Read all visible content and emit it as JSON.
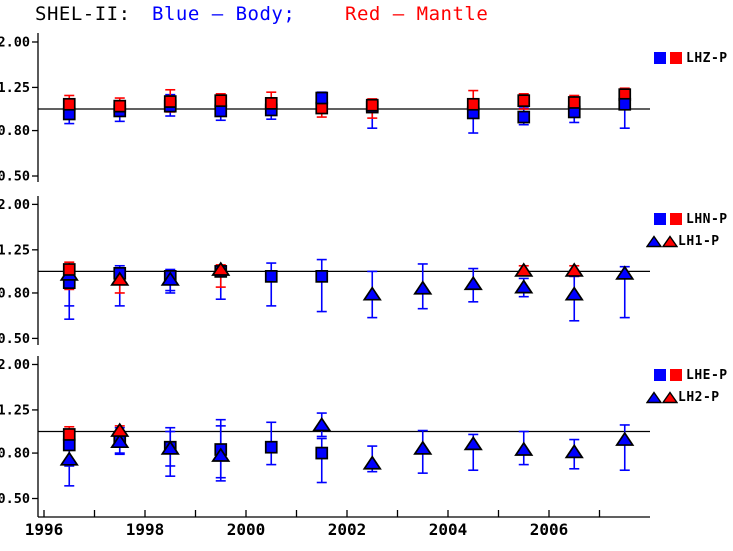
{
  "title": {
    "part1": "SHEL-II:",
    "part2": "Blue – Body;",
    "part3": "Red – Mantle"
  },
  "colors": {
    "body": "#0000ff",
    "mantle": "#ff0000",
    "axis": "#000000"
  },
  "chart_data": {
    "type": "scatter",
    "scale": "log",
    "title": "SHEL-II:  Blue – Body;  Red – Mantle",
    "x_axis": {
      "range": [
        1995.9,
        2008.0
      ],
      "tick_years": [
        1996,
        1997,
        1998,
        1999,
        2000,
        2001,
        2002,
        2003,
        2004,
        2005,
        2006,
        2007
      ],
      "label_years": [
        1996,
        1998,
        2000,
        2002,
        2004,
        2006
      ],
      "labels": [
        "1996",
        "1998",
        "2000",
        "2002",
        "2004",
        "2006"
      ]
    },
    "y_axis": {
      "tick_labels": [
        "2.00",
        "1.25",
        "0.80",
        "0.50"
      ],
      "tick_values": [
        2.0,
        1.25,
        0.8,
        0.5
      ],
      "reference_value": 1.0,
      "range": [
        0.45,
        2.1
      ]
    },
    "panels": [
      {
        "name": "LHZ",
        "legend": [
          {
            "label": "LHZ-P",
            "marker": "square"
          }
        ],
        "points": [
          {
            "x": 1996.5,
            "c": "blue",
            "m": "sq",
            "v": 0.95,
            "lo": 0.86,
            "hi": 1.02
          },
          {
            "x": 1996.5,
            "c": "red",
            "m": "sq",
            "v": 1.05,
            "lo": 0.95,
            "hi": 1.15
          },
          {
            "x": 1997.5,
            "c": "blue",
            "m": "sq",
            "v": 0.98,
            "lo": 0.88,
            "hi": 1.06
          },
          {
            "x": 1997.5,
            "c": "red",
            "m": "sq",
            "v": 1.03,
            "lo": 0.95,
            "hi": 1.12
          },
          {
            "x": 1998.5,
            "c": "blue",
            "m": "sq",
            "v": 1.03,
            "lo": 0.93,
            "hi": 1.16
          },
          {
            "x": 1998.5,
            "c": "red",
            "m": "sq",
            "v": 1.08,
            "lo": 0.97,
            "hi": 1.22
          },
          {
            "x": 1999.5,
            "c": "blue",
            "m": "sq",
            "v": 0.98,
            "lo": 0.89,
            "hi": 1.06
          },
          {
            "x": 1999.5,
            "c": "red",
            "m": "sq",
            "v": 1.09,
            "lo": 1.0,
            "hi": 1.17
          },
          {
            "x": 2000.5,
            "c": "blue",
            "m": "sq",
            "v": 0.99,
            "lo": 0.9,
            "hi": 1.08
          },
          {
            "x": 2000.5,
            "c": "red",
            "m": "sq",
            "v": 1.06,
            "lo": 0.95,
            "hi": 1.19
          },
          {
            "x": 2001.5,
            "c": "red",
            "m": "sq",
            "v": 1.01,
            "lo": 0.92,
            "hi": 1.08
          },
          {
            "x": 2001.5,
            "c": "blue",
            "m": "sq",
            "v": 1.12,
            "lo": 0.97,
            "hi": 1.19
          },
          {
            "x": 2002.5,
            "c": "blue",
            "m": "sq",
            "v": 1.02,
            "lo": 0.82,
            "hi": 1.1
          },
          {
            "x": 2002.5,
            "c": "red",
            "m": "sq",
            "v": 1.04,
            "lo": 0.91,
            "hi": 1.11
          },
          {
            "x": 2004.5,
            "c": "blue",
            "m": "sq",
            "v": 0.96,
            "lo": 0.78,
            "hi": 1.07
          },
          {
            "x": 2004.5,
            "c": "red",
            "m": "sq",
            "v": 1.05,
            "lo": 0.96,
            "hi": 1.21
          },
          {
            "x": 2005.5,
            "c": "blue",
            "m": "sq",
            "v": 0.92,
            "lo": 0.85,
            "hi": 1.01
          },
          {
            "x": 2005.5,
            "c": "red",
            "m": "sq",
            "v": 1.09,
            "lo": 1.0,
            "hi": 1.17
          },
          {
            "x": 2006.5,
            "c": "blue",
            "m": "sq",
            "v": 0.97,
            "lo": 0.87,
            "hi": 1.08
          },
          {
            "x": 2006.5,
            "c": "red",
            "m": "sq",
            "v": 1.07,
            "lo": 0.98,
            "hi": 1.15
          },
          {
            "x": 2007.5,
            "c": "red",
            "m": "sq",
            "v": 1.16,
            "lo": 1.04,
            "hi": 1.24
          },
          {
            "x": 2007.5,
            "c": "blue",
            "m": "sq",
            "v": 1.05,
            "lo": 0.82,
            "hi": 1.16
          }
        ]
      },
      {
        "name": "LHN",
        "legend": [
          {
            "label": "LHN-P",
            "marker": "square"
          },
          {
            "label": "LH1-P",
            "marker": "triangle"
          }
        ],
        "points": [
          {
            "x": 1996.5,
            "c": "blue",
            "m": "sq",
            "v": 0.89,
            "lo": 0.61,
            "hi": 1.04
          },
          {
            "x": 1996.5,
            "c": "blue",
            "m": "tri",
            "v": 0.97,
            "lo": 0.7,
            "hi": 1.05
          },
          {
            "x": 1996.5,
            "c": "red",
            "m": "sq",
            "v": 1.02,
            "lo": 0.83,
            "hi": 1.1
          },
          {
            "x": 1997.5,
            "c": "blue",
            "m": "sq",
            "v": 0.98,
            "lo": 0.7,
            "hi": 1.06
          },
          {
            "x": 1997.5,
            "c": "red",
            "m": "tri",
            "v": 0.92,
            "lo": 0.8,
            "hi": 1.03
          },
          {
            "x": 1998.5,
            "c": "blue",
            "m": "sq",
            "v": 0.95,
            "lo": 0.8,
            "hi": 1.02
          },
          {
            "x": 1998.5,
            "c": "blue",
            "m": "tri",
            "v": 0.92,
            "lo": 0.82,
            "hi": 1.0
          },
          {
            "x": 1999.5,
            "c": "blue",
            "m": "sq",
            "v": 1.0,
            "lo": 0.75,
            "hi": 1.06
          },
          {
            "x": 1999.5,
            "c": "red",
            "m": "tri",
            "v": 1.02,
            "lo": 0.85,
            "hi": 1.07
          },
          {
            "x": 2000.5,
            "c": "blue",
            "m": "sq",
            "v": 0.95,
            "lo": 0.7,
            "hi": 1.09
          },
          {
            "x": 2001.5,
            "c": "blue",
            "m": "sq",
            "v": 0.95,
            "lo": 0.66,
            "hi": 1.13
          },
          {
            "x": 2002.5,
            "c": "blue",
            "m": "tri",
            "v": 0.79,
            "lo": 0.62,
            "hi": 1.0
          },
          {
            "x": 2003.5,
            "c": "blue",
            "m": "tri",
            "v": 0.84,
            "lo": 0.68,
            "hi": 1.08
          },
          {
            "x": 2004.5,
            "c": "blue",
            "m": "tri",
            "v": 0.88,
            "lo": 0.73,
            "hi": 1.03
          },
          {
            "x": 2005.5,
            "c": "red",
            "m": "tri",
            "v": 1.01,
            "lo": 0.96,
            "hi": 1.06
          },
          {
            "x": 2005.5,
            "c": "blue",
            "m": "tri",
            "v": 0.85,
            "lo": 0.77,
            "hi": 0.93
          },
          {
            "x": 2006.5,
            "c": "red",
            "m": "tri",
            "v": 1.01,
            "lo": 0.95,
            "hi": 1.06
          },
          {
            "x": 2006.5,
            "c": "blue",
            "m": "tri",
            "v": 0.79,
            "lo": 0.6,
            "hi": 0.95
          },
          {
            "x": 2007.5,
            "c": "blue",
            "m": "tri",
            "v": 0.98,
            "lo": 0.62,
            "hi": 1.05
          }
        ]
      },
      {
        "name": "LHE",
        "legend": [
          {
            "label": "LHE-P",
            "marker": "square"
          },
          {
            "label": "LH2-P",
            "marker": "triangle"
          }
        ],
        "points": [
          {
            "x": 1996.5,
            "c": "blue",
            "m": "tri",
            "v": 0.75,
            "lo": 0.57,
            "hi": 0.95
          },
          {
            "x": 1996.5,
            "c": "blue",
            "m": "sq",
            "v": 0.87,
            "lo": 0.7,
            "hi": 1.0
          },
          {
            "x": 1996.5,
            "c": "red",
            "m": "sq",
            "v": 0.97,
            "lo": 0.85,
            "hi": 1.05
          },
          {
            "x": 1997.5,
            "c": "blue",
            "m": "sq",
            "v": 0.93,
            "lo": 0.79,
            "hi": 1.04
          },
          {
            "x": 1997.5,
            "c": "blue",
            "m": "tri",
            "v": 0.9,
            "lo": 0.8,
            "hi": 1.0
          },
          {
            "x": 1997.5,
            "c": "red",
            "m": "tri",
            "v": 1.01,
            "lo": 0.85,
            "hi": 1.06
          },
          {
            "x": 1998.5,
            "c": "blue",
            "m": "sq",
            "v": 0.85,
            "lo": 0.63,
            "hi": 1.04
          },
          {
            "x": 1998.5,
            "c": "blue",
            "m": "tri",
            "v": 0.84,
            "lo": 0.7,
            "hi": 1.0
          },
          {
            "x": 1999.5,
            "c": "blue",
            "m": "sq",
            "v": 0.83,
            "lo": 0.62,
            "hi": 1.06
          },
          {
            "x": 1999.5,
            "c": "blue",
            "m": "tri",
            "v": 0.78,
            "lo": 0.6,
            "hi": 1.13
          },
          {
            "x": 2000.5,
            "c": "blue",
            "m": "sq",
            "v": 0.85,
            "lo": 0.71,
            "hi": 1.1
          },
          {
            "x": 2001.5,
            "c": "blue",
            "m": "sq",
            "v": 0.8,
            "lo": 0.59,
            "hi": 0.93
          },
          {
            "x": 2001.5,
            "c": "blue",
            "m": "tri",
            "v": 1.07,
            "lo": 0.95,
            "hi": 1.21
          },
          {
            "x": 2002.5,
            "c": "blue",
            "m": "tri",
            "v": 0.72,
            "lo": 0.66,
            "hi": 0.86
          },
          {
            "x": 2003.5,
            "c": "blue",
            "m": "tri",
            "v": 0.84,
            "lo": 0.65,
            "hi": 1.01
          },
          {
            "x": 2004.5,
            "c": "blue",
            "m": "tri",
            "v": 0.88,
            "lo": 0.67,
            "hi": 0.97
          },
          {
            "x": 2005.5,
            "c": "blue",
            "m": "tri",
            "v": 0.83,
            "lo": 0.71,
            "hi": 1.0
          },
          {
            "x": 2006.5,
            "c": "blue",
            "m": "tri",
            "v": 0.81,
            "lo": 0.68,
            "hi": 0.92
          },
          {
            "x": 2007.5,
            "c": "blue",
            "m": "tri",
            "v": 0.92,
            "lo": 0.67,
            "hi": 1.07
          }
        ]
      }
    ]
  }
}
